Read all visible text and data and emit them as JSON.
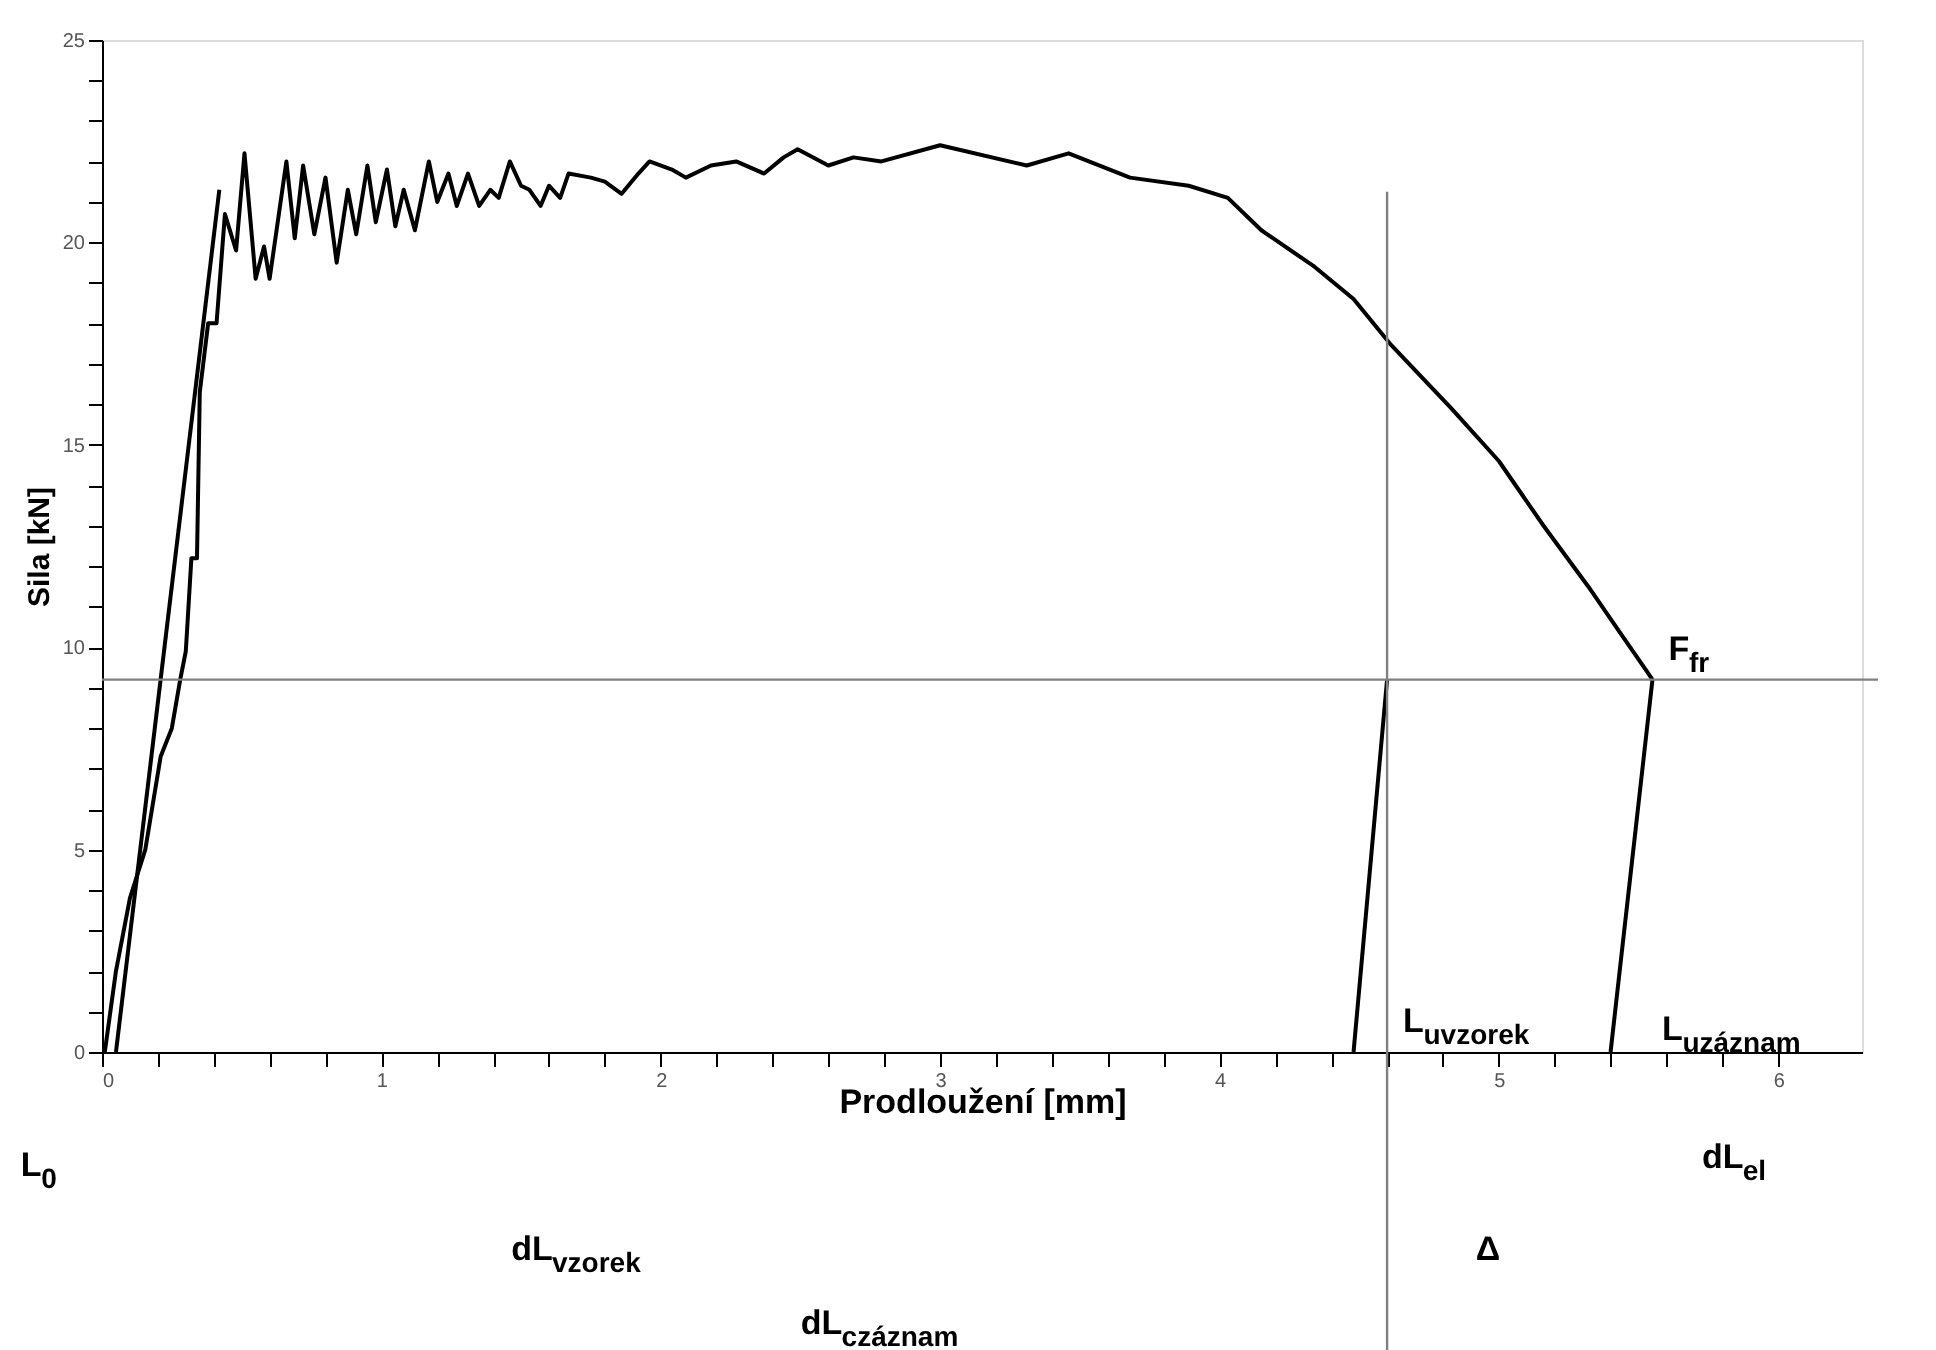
{
  "chart_data": {
    "type": "line",
    "xlabel": "Prodloužení [mm]",
    "ylabel": "Sila [kN]",
    "xlim": [
      0,
      6.3
    ],
    "ylim": [
      0,
      25
    ],
    "xticks": [
      0,
      {
        "value": 0.2,
        "label": null
      },
      {
        "value": 0.4,
        "label": null
      },
      {
        "value": 0.6,
        "label": null
      },
      {
        "value": 0.8,
        "label": null
      },
      1,
      {
        "value": 1.2,
        "label": null
      },
      {
        "value": 1.4,
        "label": null
      },
      {
        "value": 1.6,
        "label": null
      },
      {
        "value": 1.8,
        "label": null
      },
      2,
      {
        "value": 2.2,
        "label": null
      },
      {
        "value": 2.4,
        "label": null
      },
      {
        "value": 2.6,
        "label": null
      },
      {
        "value": 2.8,
        "label": null
      },
      3,
      {
        "value": 3.2,
        "label": null
      },
      {
        "value": 3.4,
        "label": null
      },
      {
        "value": 3.6,
        "label": null
      },
      {
        "value": 3.8,
        "label": null
      },
      4,
      {
        "value": 4.2,
        "label": null
      },
      {
        "value": 4.4,
        "label": null
      },
      {
        "value": 4.6,
        "label": null
      },
      {
        "value": 4.8,
        "label": null
      },
      5,
      {
        "value": 5.2,
        "label": null
      },
      {
        "value": 5.4,
        "label": null
      },
      {
        "value": 5.6,
        "label": null
      },
      {
        "value": 5.8,
        "label": null
      },
      6
    ],
    "yticks": [
      0,
      {
        "value": 1,
        "label": null
      },
      {
        "value": 2,
        "label": null
      },
      {
        "value": 3,
        "label": null
      },
      {
        "value": 4,
        "label": null
      },
      5,
      {
        "value": 6,
        "label": null
      },
      {
        "value": 7,
        "label": null
      },
      {
        "value": 8,
        "label": null
      },
      {
        "value": 9,
        "label": null
      },
      10,
      {
        "value": 11,
        "label": null
      },
      {
        "value": 12,
        "label": null
      },
      {
        "value": 13,
        "label": null
      },
      {
        "value": 14,
        "label": null
      },
      15,
      {
        "value": 16,
        "label": null
      },
      {
        "value": 17,
        "label": null
      },
      {
        "value": 18,
        "label": null
      },
      {
        "value": 19,
        "label": null
      },
      20,
      {
        "value": 21,
        "label": null
      },
      {
        "value": 22,
        "label": null
      },
      {
        "value": 23,
        "label": null
      },
      {
        "value": 24,
        "label": null
      },
      25
    ],
    "grid": false,
    "legend": false,
    "marker": "none",
    "line_style": "solid",
    "series": [
      {
        "color": "#000000",
        "x": [
          0.05,
          0.42
        ],
        "values": [
          0,
          21.3
        ]
      },
      {
        "color": "#000000",
        "x": [
          0.01,
          0.05,
          0.1,
          0.155,
          0.21,
          0.25,
          0.28,
          0.3,
          0.32,
          0.34,
          0.35,
          0.38,
          0.41,
          0.44,
          0.48,
          0.51,
          0.55,
          0.58,
          0.6,
          0.66,
          0.69,
          0.72,
          0.76,
          0.8,
          0.84,
          0.88,
          0.91,
          0.95,
          0.98,
          1.02,
          1.05,
          1.08,
          1.12,
          1.17,
          1.2,
          1.24,
          1.27,
          1.31,
          1.35,
          1.39,
          1.42,
          1.46,
          1.5,
          1.53,
          1.57,
          1.6,
          1.64,
          1.67,
          1.75,
          1.8,
          1.86,
          1.92,
          1.96,
          2.04,
          2.09,
          2.18,
          2.27,
          2.37,
          2.44,
          2.49,
          2.6,
          2.69,
          2.79,
          3.0,
          3.31,
          3.46,
          3.68,
          3.89,
          4.03,
          4.15,
          4.34,
          4.48,
          4.61,
          4.83,
          5.0,
          5.16,
          5.32,
          5.44,
          5.53,
          5.55
        ],
        "values": [
          0,
          2.0,
          3.8,
          5.0,
          7.3,
          8.0,
          9.2,
          9.9,
          12.2,
          12.2,
          16.3,
          18.0,
          18.0,
          20.7,
          19.8,
          22.2,
          19.1,
          19.9,
          19.1,
          22.0,
          20.1,
          21.9,
          20.2,
          21.6,
          19.5,
          21.3,
          20.2,
          21.9,
          20.5,
          21.8,
          20.4,
          21.3,
          20.3,
          22.0,
          21.0,
          21.7,
          20.9,
          21.7,
          20.9,
          21.3,
          21.1,
          22.0,
          21.4,
          21.3,
          20.9,
          21.4,
          21.1,
          21.7,
          21.6,
          21.5,
          21.2,
          21.7,
          22.0,
          21.8,
          21.6,
          21.9,
          22.0,
          21.7,
          22.1,
          22.3,
          21.9,
          22.1,
          22.0,
          22.4,
          21.9,
          22.2,
          21.6,
          21.4,
          21.1,
          20.3,
          19.4,
          18.6,
          17.5,
          15.9,
          14.6,
          13.0,
          11.5,
          10.3,
          9.4,
          9.2
        ]
      },
      {
        "color": "#000000",
        "x": [
          5.55,
          5.4
        ],
        "values": [
          9.2,
          0
        ]
      },
      {
        "color": "#000000",
        "x": [
          4.6,
          4.48
        ],
        "values": [
          9.2,
          0
        ]
      }
    ],
    "ref_lines": [
      {
        "axis": "y",
        "value": 9.2,
        "color": "#808080"
      },
      {
        "axis": "x",
        "value": 4.6,
        "color": "#808080"
      }
    ],
    "annotations": [
      {
        "text": "F$_{fr}$",
        "x": 5.55,
        "y": 9.2
      },
      {
        "text": "L$_{uvzorek}$",
        "x": 4.6,
        "y": 0
      },
      "L$_{uzáznam}$",
      "L$_{0}$",
      "dL$_{vzorek}$",
      "Δ",
      "dL$_{el}$",
      "dL$_{czáznam}$"
    ]
  }
}
